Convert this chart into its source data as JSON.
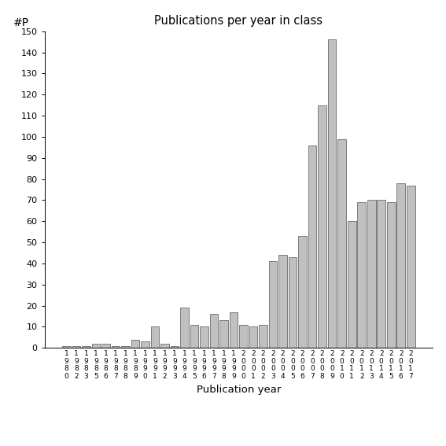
{
  "years": [
    "1980",
    "1982",
    "1983",
    "1985",
    "1986",
    "1987",
    "1988",
    "1989",
    "1990",
    "1991",
    "1992",
    "1993",
    "1994",
    "1995",
    "1996",
    "1997",
    "1998",
    "1999",
    "2000",
    "2001",
    "2002",
    "2003",
    "2004",
    "2005",
    "2006",
    "2007",
    "2008",
    "2009",
    "2010",
    "2011",
    "2012",
    "2013",
    "2014",
    "2015",
    "2016",
    "2017"
  ],
  "values": [
    1,
    1,
    1,
    2,
    2,
    1,
    1,
    4,
    3,
    10,
    2,
    1,
    19,
    11,
    10,
    16,
    13,
    17,
    11,
    10,
    11,
    41,
    44,
    43,
    53,
    96,
    115,
    146,
    99,
    60,
    69,
    70,
    70,
    69,
    78,
    77
  ],
  "title": "Publications per year in class",
  "xlabel": "Publication year",
  "ylabel": "#P",
  "ylim": [
    0,
    150
  ],
  "yticks": [
    0,
    10,
    20,
    30,
    40,
    50,
    60,
    70,
    80,
    90,
    100,
    110,
    120,
    130,
    140,
    150
  ],
  "bar_color": "#c0c0c0",
  "bar_edge_color": "#555555",
  "background_color": "#ffffff"
}
